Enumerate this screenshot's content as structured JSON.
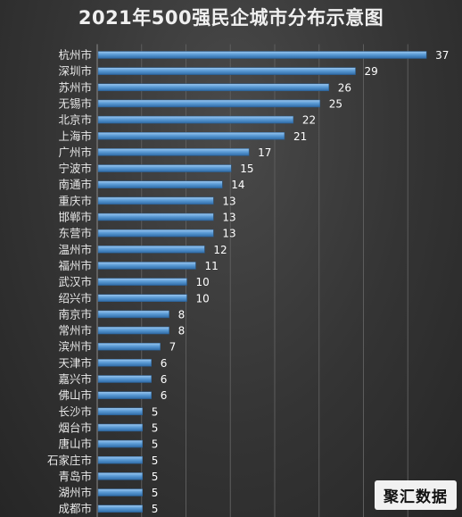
{
  "chart_data": {
    "type": "bar",
    "orientation": "horizontal",
    "title": "2021年500强民企城市分布示意图",
    "xlabel": "",
    "ylabel": "",
    "xlim": [
      0,
      40
    ],
    "grid": true,
    "bar_color": "#5b9bd5",
    "categories": [
      "杭州市",
      "深圳市",
      "苏州市",
      "无锡市",
      "北京市",
      "上海市",
      "广州市",
      "宁波市",
      "南通市",
      "重庆市",
      "邯郸市",
      "东营市",
      "温州市",
      "福州市",
      "武汉市",
      "绍兴市",
      "南京市",
      "常州市",
      "滨州市",
      "天津市",
      "嘉兴市",
      "佛山市",
      "长沙市",
      "烟台市",
      "唐山市",
      "石家庄市",
      "青岛市",
      "湖州市",
      "成都市"
    ],
    "values": [
      37,
      29,
      26,
      25,
      22,
      21,
      17,
      15,
      14,
      13,
      13,
      13,
      12,
      11,
      10,
      10,
      8,
      8,
      7,
      6,
      6,
      6,
      5,
      5,
      5,
      5,
      5,
      5,
      5
    ]
  },
  "watermark": "聚汇数据"
}
